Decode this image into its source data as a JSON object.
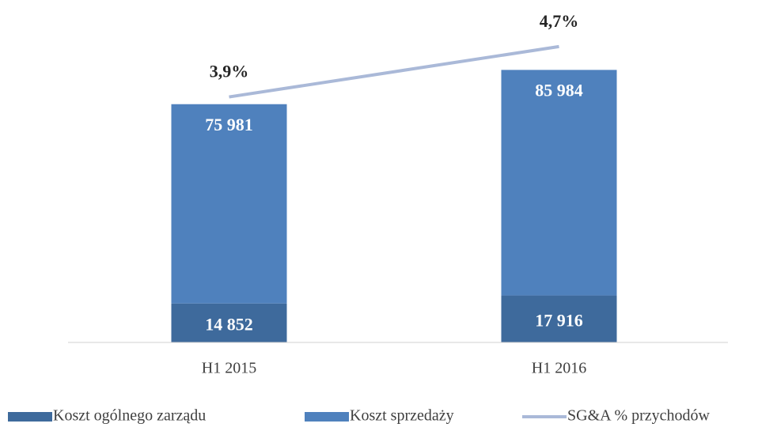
{
  "chart_data": {
    "type": "stacked_bar_line",
    "categories": [
      "H1 2015",
      "H1 2016"
    ],
    "series": [
      {
        "name": "Koszt ogólnego zarządu",
        "color": "#3e6a9c",
        "values": [
          14852,
          17916
        ],
        "value_labels": [
          "14 852",
          "17 916"
        ]
      },
      {
        "name": "Koszt sprzedaży",
        "color": "#4f81bd",
        "values": [
          75981,
          85984
        ],
        "value_labels": [
          "75 981",
          "85 984"
        ]
      },
      {
        "name": "SG&A % przychodów",
        "color": "#aab9d8",
        "axis": "y2",
        "values": [
          3.9,
          4.7
        ],
        "value_labels": [
          "3,9%",
          "4,7%"
        ]
      }
    ],
    "ylim": [
      0,
      120000
    ],
    "y2lim": [
      0,
      5
    ],
    "legend": "bottom"
  }
}
